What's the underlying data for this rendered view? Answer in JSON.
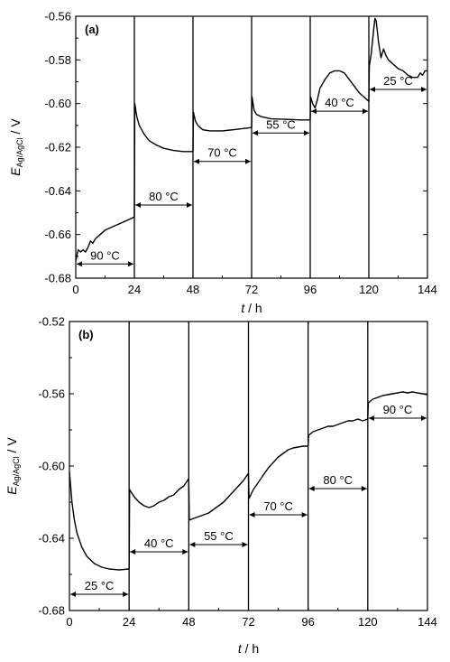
{
  "chart_data": [
    {
      "type": "line",
      "panel_label": "(a)",
      "xlabel_italic": "t",
      "xlabel_rest": " / h",
      "ylabel_main": "E",
      "ylabel_sub": "Ag/AgCl",
      "ylabel_rest": " / V",
      "xlim": [
        0,
        144
      ],
      "ylim": [
        -0.68,
        -0.56
      ],
      "xticks": [
        0,
        24,
        48,
        72,
        96,
        120,
        144
      ],
      "xtick_labels": [
        "0",
        "24",
        "48",
        "72",
        "96",
        "120",
        "144"
      ],
      "yticks": [
        -0.68,
        -0.66,
        -0.64,
        -0.62,
        -0.6,
        -0.58,
        -0.56
      ],
      "ytick_labels": [
        "-0.68",
        "-0.66",
        "-0.64",
        "-0.62",
        "-0.60",
        "-0.58",
        "-0.56"
      ],
      "segments": [
        {
          "label": "90 °C",
          "start": 0,
          "end": 24,
          "arrow_y": -0.6735,
          "points": [
            [
              0,
              -0.672
            ],
            [
              1,
              -0.667
            ],
            [
              2,
              -0.668
            ],
            [
              3,
              -0.667
            ],
            [
              4,
              -0.668
            ],
            [
              5,
              -0.666
            ],
            [
              6,
              -0.663
            ],
            [
              7,
              -0.664
            ],
            [
              8,
              -0.662
            ],
            [
              10,
              -0.66
            ],
            [
              12,
              -0.658
            ],
            [
              14,
              -0.657
            ],
            [
              16,
              -0.656
            ],
            [
              18,
              -0.655
            ],
            [
              20,
              -0.654
            ],
            [
              22,
              -0.653
            ],
            [
              24,
              -0.652
            ]
          ]
        },
        {
          "label": "80 °C",
          "start": 24,
          "end": 48,
          "arrow_y": -0.6465,
          "points": [
            [
              24,
              -0.652
            ],
            [
              24.2,
              -0.6
            ],
            [
              25,
              -0.606
            ],
            [
              26,
              -0.61
            ],
            [
              28,
              -0.614
            ],
            [
              30,
              -0.617
            ],
            [
              33,
              -0.619
            ],
            [
              36,
              -0.6205
            ],
            [
              40,
              -0.6215
            ],
            [
              44,
              -0.622
            ],
            [
              48,
              -0.622
            ]
          ]
        },
        {
          "label": "70 °C",
          "start": 48,
          "end": 72,
          "arrow_y": -0.6265,
          "points": [
            [
              48,
              -0.622
            ],
            [
              48.2,
              -0.604
            ],
            [
              49,
              -0.608
            ],
            [
              50,
              -0.61
            ],
            [
              52,
              -0.612
            ],
            [
              55,
              -0.6125
            ],
            [
              60,
              -0.6125
            ],
            [
              66,
              -0.6118
            ],
            [
              72,
              -0.611
            ]
          ]
        },
        {
          "label": "55 °C",
          "start": 72,
          "end": 96,
          "arrow_y": -0.6135,
          "points": [
            [
              72,
              -0.611
            ],
            [
              72.2,
              -0.597
            ],
            [
              73,
              -0.603
            ],
            [
              74,
              -0.605
            ],
            [
              76,
              -0.606
            ],
            [
              80,
              -0.607
            ],
            [
              86,
              -0.6072
            ],
            [
              92,
              -0.6075
            ],
            [
              96,
              -0.6075
            ]
          ]
        },
        {
          "label": "40 °C",
          "start": 96,
          "end": 120,
          "arrow_y": -0.6035,
          "points": [
            [
              96,
              -0.6075
            ],
            [
              96.2,
              -0.597
            ],
            [
              97,
              -0.6
            ],
            [
              98,
              -0.602
            ],
            [
              99,
              -0.598
            ],
            [
              100,
              -0.593
            ],
            [
              102,
              -0.589
            ],
            [
              104,
              -0.586
            ],
            [
              106,
              -0.585
            ],
            [
              108,
              -0.585
            ],
            [
              110,
              -0.586
            ],
            [
              112,
              -0.589
            ],
            [
              114,
              -0.592
            ],
            [
              116,
              -0.595
            ],
            [
              118,
              -0.597
            ],
            [
              120,
              -0.599
            ]
          ]
        },
        {
          "label": "25 °C",
          "start": 120,
          "end": 144,
          "arrow_y": -0.5935,
          "points": [
            [
              120,
              -0.599
            ],
            [
              120.2,
              -0.583
            ],
            [
              121,
              -0.577
            ],
            [
              122,
              -0.566
            ],
            [
              122.5,
              -0.561
            ],
            [
              123,
              -0.562
            ],
            [
              124,
              -0.572
            ],
            [
              125,
              -0.579
            ],
            [
              126,
              -0.575
            ],
            [
              127,
              -0.578
            ],
            [
              128,
              -0.58
            ],
            [
              130,
              -0.582
            ],
            [
              132,
              -0.584
            ],
            [
              134,
              -0.585
            ],
            [
              136,
              -0.587
            ],
            [
              138,
              -0.588
            ],
            [
              140,
              -0.588
            ],
            [
              141,
              -0.586
            ],
            [
              142,
              -0.587
            ],
            [
              143,
              -0.585
            ],
            [
              144,
              -0.585
            ]
          ]
        }
      ]
    },
    {
      "type": "line",
      "panel_label": "(b)",
      "xlabel_italic": "t",
      "xlabel_rest": " / h",
      "ylabel_main": "E",
      "ylabel_sub": "Ag/AgCl",
      "ylabel_rest": " / V",
      "xlim": [
        0,
        144
      ],
      "ylim": [
        -0.68,
        -0.52
      ],
      "xticks": [
        0,
        24,
        48,
        72,
        96,
        120,
        144
      ],
      "xtick_labels": [
        "0",
        "24",
        "48",
        "72",
        "96",
        "120",
        "144"
      ],
      "yticks": [
        -0.68,
        -0.64,
        -0.6,
        -0.56,
        -0.52
      ],
      "ytick_labels": [
        "-0.68",
        "-0.64",
        "-0.60",
        "-0.56",
        "-0.52"
      ],
      "segments": [
        {
          "label": "25 °C",
          "start": 0,
          "end": 24,
          "arrow_y": -0.671,
          "points": [
            [
              0,
              -0.603
            ],
            [
              1,
              -0.62
            ],
            [
              2,
              -0.63
            ],
            [
              3,
              -0.637
            ],
            [
              5,
              -0.645
            ],
            [
              7,
              -0.65
            ],
            [
              10,
              -0.654
            ],
            [
              13,
              -0.656
            ],
            [
              16,
              -0.657
            ],
            [
              20,
              -0.6575
            ],
            [
              24,
              -0.657
            ]
          ]
        },
        {
          "label": "40 °C",
          "start": 24,
          "end": 48,
          "arrow_y": -0.6475,
          "points": [
            [
              24,
              -0.657
            ],
            [
              24.2,
              -0.613
            ],
            [
              26,
              -0.617
            ],
            [
              28,
              -0.62
            ],
            [
              30,
              -0.622
            ],
            [
              32,
              -0.623
            ],
            [
              34,
              -0.622
            ],
            [
              36,
              -0.62
            ],
            [
              38,
              -0.619
            ],
            [
              40,
              -0.617
            ],
            [
              42,
              -0.616
            ],
            [
              44,
              -0.613
            ],
            [
              46,
              -0.611
            ],
            [
              48,
              -0.607
            ]
          ]
        },
        {
          "label": "55 °C",
          "start": 48,
          "end": 72,
          "arrow_y": -0.6435,
          "points": [
            [
              48,
              -0.607
            ],
            [
              48.2,
              -0.63
            ],
            [
              50,
              -0.629
            ],
            [
              52,
              -0.628
            ],
            [
              54,
              -0.627
            ],
            [
              56,
              -0.626
            ],
            [
              58,
              -0.624
            ],
            [
              60,
              -0.622
            ],
            [
              62,
              -0.62
            ],
            [
              64,
              -0.617
            ],
            [
              66,
              -0.614
            ],
            [
              68,
              -0.611
            ],
            [
              70,
              -0.608
            ],
            [
              72,
              -0.604
            ]
          ]
        },
        {
          "label": "70 °C",
          "start": 72,
          "end": 96,
          "arrow_y": -0.627,
          "points": [
            [
              72,
              -0.604
            ],
            [
              72.2,
              -0.618
            ],
            [
              74,
              -0.613
            ],
            [
              76,
              -0.609
            ],
            [
              78,
              -0.605
            ],
            [
              80,
              -0.601
            ],
            [
              82,
              -0.598
            ],
            [
              84,
              -0.595
            ],
            [
              86,
              -0.593
            ],
            [
              88,
              -0.591
            ],
            [
              90,
              -0.59
            ],
            [
              92,
              -0.5895
            ],
            [
              94,
              -0.589
            ],
            [
              96,
              -0.589
            ]
          ]
        },
        {
          "label": "80 °C",
          "start": 96,
          "end": 120,
          "arrow_y": -0.6125,
          "points": [
            [
              96,
              -0.589
            ],
            [
              96.2,
              -0.583
            ],
            [
              98,
              -0.581
            ],
            [
              100,
              -0.58
            ],
            [
              102,
              -0.579
            ],
            [
              104,
              -0.578
            ],
            [
              106,
              -0.578
            ],
            [
              108,
              -0.577
            ],
            [
              110,
              -0.576
            ],
            [
              112,
              -0.575
            ],
            [
              114,
              -0.575
            ],
            [
              116,
              -0.574
            ],
            [
              118,
              -0.575
            ],
            [
              120,
              -0.574
            ]
          ]
        },
        {
          "label": "90 °C",
          "start": 120,
          "end": 144,
          "arrow_y": -0.5735,
          "points": [
            [
              120,
              -0.574
            ],
            [
              120.2,
              -0.565
            ],
            [
              122,
              -0.563
            ],
            [
              124,
              -0.562
            ],
            [
              126,
              -0.561
            ],
            [
              128,
              -0.5605
            ],
            [
              130,
              -0.56
            ],
            [
              132,
              -0.5595
            ],
            [
              134,
              -0.559
            ],
            [
              136,
              -0.5595
            ],
            [
              138,
              -0.559
            ],
            [
              140,
              -0.5595
            ],
            [
              142,
              -0.56
            ],
            [
              144,
              -0.5605
            ]
          ]
        }
      ]
    }
  ]
}
